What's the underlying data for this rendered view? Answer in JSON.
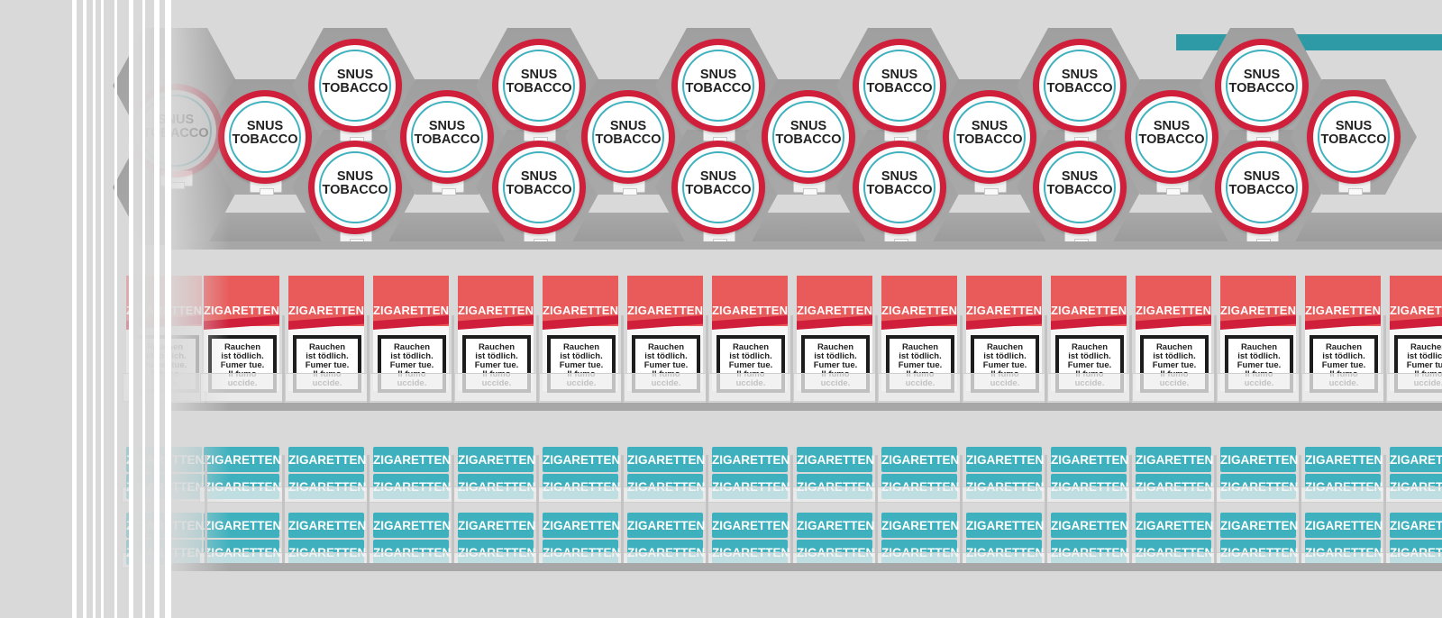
{
  "scene": "tobacco-shelf",
  "colors": {
    "background": "#d9d9d9",
    "tin_ring": "#cf1f3a",
    "tin_inner_ring": "#3fb1be",
    "red_pack_top": "#e85b5a",
    "red_pack_stripe": "#cf1f3a",
    "teal_pack": "#3fb1be",
    "accent_bar": "#2e9aa6"
  },
  "snus": {
    "line1": "SNUS",
    "line2": "TOBACCO"
  },
  "red_pack": {
    "brand": "ZIGARETTEN",
    "warning_lines": [
      "Rauchen",
      "ist tödlich.",
      "Fumer tue.",
      "Il fumo",
      "uccide."
    ]
  },
  "teal_pack": {
    "brand": "ZIGARETTEN"
  }
}
